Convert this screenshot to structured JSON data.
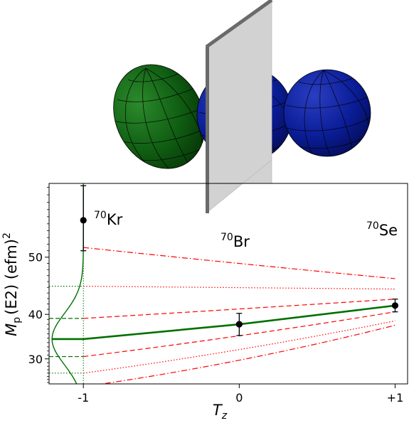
{
  "chart_data": {
    "type": "line",
    "x_axis": {
      "label": "T",
      "label_sub": "z",
      "ticks": [
        -1,
        0,
        1
      ],
      "tick_labels": [
        "-1",
        "0",
        "+1"
      ],
      "xlim": [
        -1.22,
        1.08
      ]
    },
    "y_axis": {
      "label_main": "M",
      "label_sub": "p",
      "label_rest": "(E2) (efm)",
      "label_sup": "2",
      "ylim": [
        22.5,
        60.5
      ],
      "scale": "quadratic",
      "ticks": [
        30,
        40,
        50
      ],
      "tick_labels": [
        "30",
        "40",
        "50"
      ]
    },
    "nucleus_labels": [
      {
        "mass": "70",
        "element": "Kr"
      },
      {
        "mass": "70",
        "element": "Br"
      },
      {
        "mass": "70",
        "element": "Se"
      }
    ],
    "measurements": [
      {
        "nucleus": "Kr",
        "x": -1,
        "y": 55.5,
        "y_low": 51.0,
        "y_high": 60.2
      },
      {
        "nucleus": "Br",
        "x": 0,
        "y": 38.0,
        "y_low": 35.6,
        "y_high": 40.2
      },
      {
        "nucleus": "Se",
        "x": 1,
        "y": 41.7,
        "y_low": 40.5,
        "y_high": 42.9
      }
    ],
    "central_prediction": {
      "x": [
        -1.2,
        -1,
        0,
        1
      ],
      "y": [
        34.8,
        34.8,
        38.0,
        41.7
      ],
      "color": "#007000"
    },
    "uncertainty_bands": [
      {
        "level": "1 sigma",
        "style": "dashed",
        "color": "#ff0000",
        "upper": {
          "x": [
            -1,
            1
          ],
          "y": [
            39.2,
            42.9
          ]
        },
        "lower": {
          "x": [
            -1,
            1
          ],
          "y": [
            30.6,
            40.5
          ]
        }
      },
      {
        "level": "2 sigma",
        "style": "dotted",
        "color": "#ff0000",
        "upper": {
          "x": [
            -1,
            1
          ],
          "y": [
            45.2,
            44.7
          ]
        },
        "lower": {
          "x": [
            -1,
            1
          ],
          "y": [
            26.0,
            38.7
          ]
        }
      },
      {
        "level": "3 sigma",
        "style": "dashdot",
        "color": "#ff0000",
        "upper": {
          "x": [
            -1,
            1
          ],
          "y": [
            51.5,
            46.5
          ]
        },
        "lower": {
          "x": [
            -1,
            1
          ],
          "y": [
            21.5,
            37.8
          ]
        }
      }
    ],
    "distribution": {
      "shape": "gaussian",
      "center": 34.8,
      "color": "#007000",
      "reference_lines": [
        26.0,
        30.6,
        39.2,
        45.2
      ]
    },
    "illustration": {
      "prolate_nucleus_color": "#0b5e0b",
      "spherical_nucleus_color": "#0a1e96",
      "mirror_plane_color": "#d2d2d2"
    },
    "grid": false,
    "legend": "none"
  }
}
